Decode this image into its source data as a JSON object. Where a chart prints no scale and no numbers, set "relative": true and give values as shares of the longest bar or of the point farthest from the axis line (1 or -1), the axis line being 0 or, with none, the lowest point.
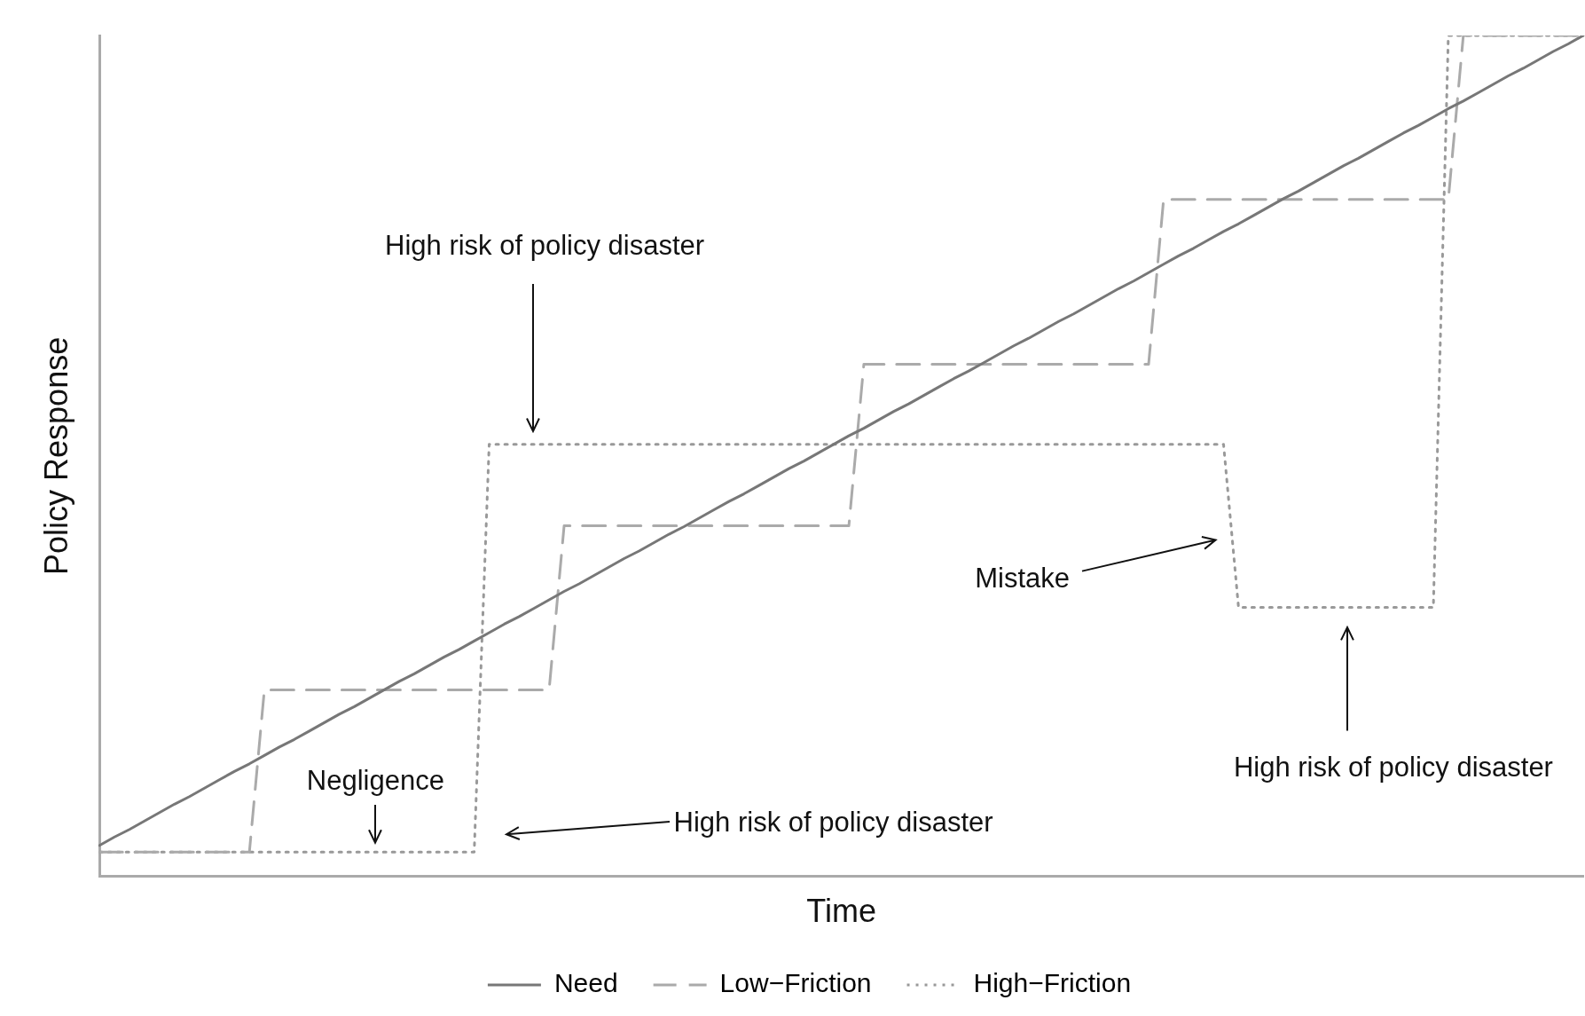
{
  "chart_data": {
    "type": "line",
    "relative": true,
    "xlabel": "Time",
    "ylabel": "Policy Response",
    "categories": [
      null,
      null,
      null,
      null,
      null,
      null,
      null,
      null,
      null,
      null,
      null,
      null,
      null,
      null,
      null,
      null,
      null,
      null,
      null,
      null,
      null,
      null,
      null,
      null,
      null,
      null,
      null,
      null,
      null,
      null,
      null,
      null,
      null,
      null,
      null,
      null,
      null,
      null,
      null,
      null,
      null,
      null,
      null,
      null,
      null,
      null,
      null,
      null,
      null,
      null,
      null,
      null,
      null,
      null,
      null,
      null,
      null,
      null,
      null,
      null,
      null,
      null,
      null,
      null,
      null,
      null,
      null,
      null,
      null,
      null,
      null,
      null,
      null,
      null,
      null,
      null,
      null,
      null,
      null,
      null,
      null,
      null,
      null,
      null,
      null,
      null,
      null,
      null,
      null,
      null,
      null,
      null,
      null,
      null,
      null,
      null,
      null,
      null,
      null,
      null
    ],
    "tick_labels": false,
    "grid": false,
    "legend": "bottom",
    "marker": "none",
    "series": [
      {
        "name": "Need",
        "color": "#777777",
        "line_style": "solid",
        "values": [
          0.037,
          0.047,
          0.056,
          0.066,
          0.076,
          0.086,
          0.095,
          0.105,
          0.115,
          0.125,
          0.134,
          0.144,
          0.154,
          0.163,
          0.173,
          0.183,
          0.193,
          0.202,
          0.212,
          0.222,
          0.232,
          0.241,
          0.251,
          0.261,
          0.27,
          0.28,
          0.29,
          0.3,
          0.309,
          0.319,
          0.329,
          0.339,
          0.348,
          0.358,
          0.368,
          0.378,
          0.387,
          0.397,
          0.407,
          0.416,
          0.426,
          0.436,
          0.446,
          0.455,
          0.465,
          0.475,
          0.485,
          0.494,
          0.504,
          0.514,
          0.524,
          0.533,
          0.543,
          0.553,
          0.562,
          0.572,
          0.582,
          0.592,
          0.601,
          0.611,
          0.621,
          0.631,
          0.64,
          0.65,
          0.66,
          0.669,
          0.679,
          0.689,
          0.699,
          0.708,
          0.718,
          0.728,
          0.738,
          0.747,
          0.757,
          0.767,
          0.776,
          0.786,
          0.796,
          0.806,
          0.815,
          0.825,
          0.835,
          0.845,
          0.854,
          0.864,
          0.874,
          0.884,
          0.893,
          0.903,
          0.913,
          0.922,
          0.932,
          0.942,
          0.952,
          0.961,
          0.971,
          0.981,
          0.99,
          1
        ]
      },
      {
        "name": "Low−Friction",
        "color": "#aaaaaa",
        "line_style": "dashed",
        "values": [
          0.029,
          0.029,
          0.029,
          0.029,
          0.029,
          0.029,
          0.029,
          0.029,
          0.029,
          0.029,
          0.029,
          0.222,
          0.222,
          0.222,
          0.222,
          0.222,
          0.222,
          0.222,
          0.222,
          0.222,
          0.222,
          0.222,
          0.222,
          0.222,
          0.222,
          0.222,
          0.222,
          0.222,
          0.222,
          0.222,
          0.222,
          0.417,
          0.417,
          0.417,
          0.417,
          0.417,
          0.417,
          0.417,
          0.417,
          0.417,
          0.417,
          0.417,
          0.417,
          0.417,
          0.417,
          0.417,
          0.417,
          0.417,
          0.417,
          0.417,
          0.417,
          0.609,
          0.609,
          0.609,
          0.609,
          0.609,
          0.609,
          0.609,
          0.609,
          0.609,
          0.609,
          0.609,
          0.609,
          0.609,
          0.609,
          0.609,
          0.609,
          0.609,
          0.609,
          0.609,
          0.609,
          0.805,
          0.805,
          0.805,
          0.805,
          0.805,
          0.805,
          0.805,
          0.805,
          0.805,
          0.805,
          0.805,
          0.805,
          0.805,
          0.805,
          0.805,
          0.805,
          0.805,
          0.805,
          0.805,
          0.805,
          1,
          1,
          1,
          1,
          1,
          1,
          1,
          1,
          1
        ]
      },
      {
        "name": "High−Friction",
        "color": "#999999",
        "line_style": "dotted",
        "values": [
          0.029,
          0.029,
          0.029,
          0.029,
          0.029,
          0.029,
          0.029,
          0.029,
          0.029,
          0.029,
          0.029,
          0.029,
          0.029,
          0.029,
          0.029,
          0.029,
          0.029,
          0.029,
          0.029,
          0.029,
          0.029,
          0.029,
          0.029,
          0.029,
          0.029,
          0.029,
          0.514,
          0.514,
          0.514,
          0.514,
          0.514,
          0.514,
          0.514,
          0.514,
          0.514,
          0.514,
          0.514,
          0.514,
          0.514,
          0.514,
          0.514,
          0.514,
          0.514,
          0.514,
          0.514,
          0.514,
          0.514,
          0.514,
          0.514,
          0.514,
          0.514,
          0.514,
          0.514,
          0.514,
          0.514,
          0.514,
          0.514,
          0.514,
          0.514,
          0.514,
          0.514,
          0.514,
          0.514,
          0.514,
          0.514,
          0.514,
          0.514,
          0.514,
          0.514,
          0.514,
          0.514,
          0.514,
          0.514,
          0.514,
          0.514,
          0.514,
          0.32,
          0.32,
          0.32,
          0.32,
          0.32,
          0.32,
          0.32,
          0.32,
          0.32,
          0.32,
          0.32,
          0.32,
          0.32,
          0.32,
          1,
          1,
          1,
          1,
          1,
          1,
          1,
          1,
          1,
          1
        ]
      }
    ],
    "annotations": [
      "High risk of policy disaster",
      "Negligence",
      "High risk of policy disaster",
      "Mistake",
      "High risk of policy disaster"
    ]
  }
}
